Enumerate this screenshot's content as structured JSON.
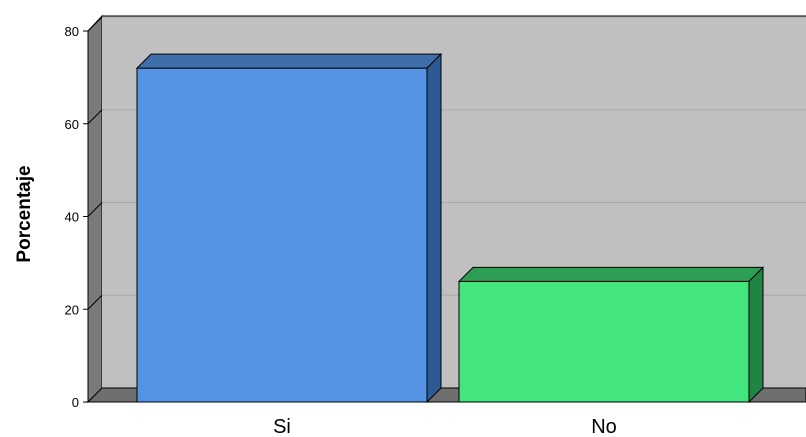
{
  "chart_data": {
    "type": "bar",
    "categories": [
      "Si",
      "No"
    ],
    "values": [
      72,
      26
    ],
    "ylabel": "Porcentaje",
    "xlabel": "",
    "ylim": [
      0,
      80
    ],
    "yticks": [
      0,
      20,
      40,
      60,
      80
    ],
    "grid": true,
    "style": "3d",
    "colors": {
      "plot_background": "#c0c0c0",
      "floor": "#6f6f6f",
      "wall": "#7a7a7a",
      "gridline": "#a8a8a8",
      "bars": [
        {
          "front": "#5594e4",
          "top": "#3f6eaa",
          "side": "#2e5a94"
        },
        {
          "front": "#42e67c",
          "top": "#2e9e55",
          "side": "#208444"
        }
      ]
    }
  }
}
